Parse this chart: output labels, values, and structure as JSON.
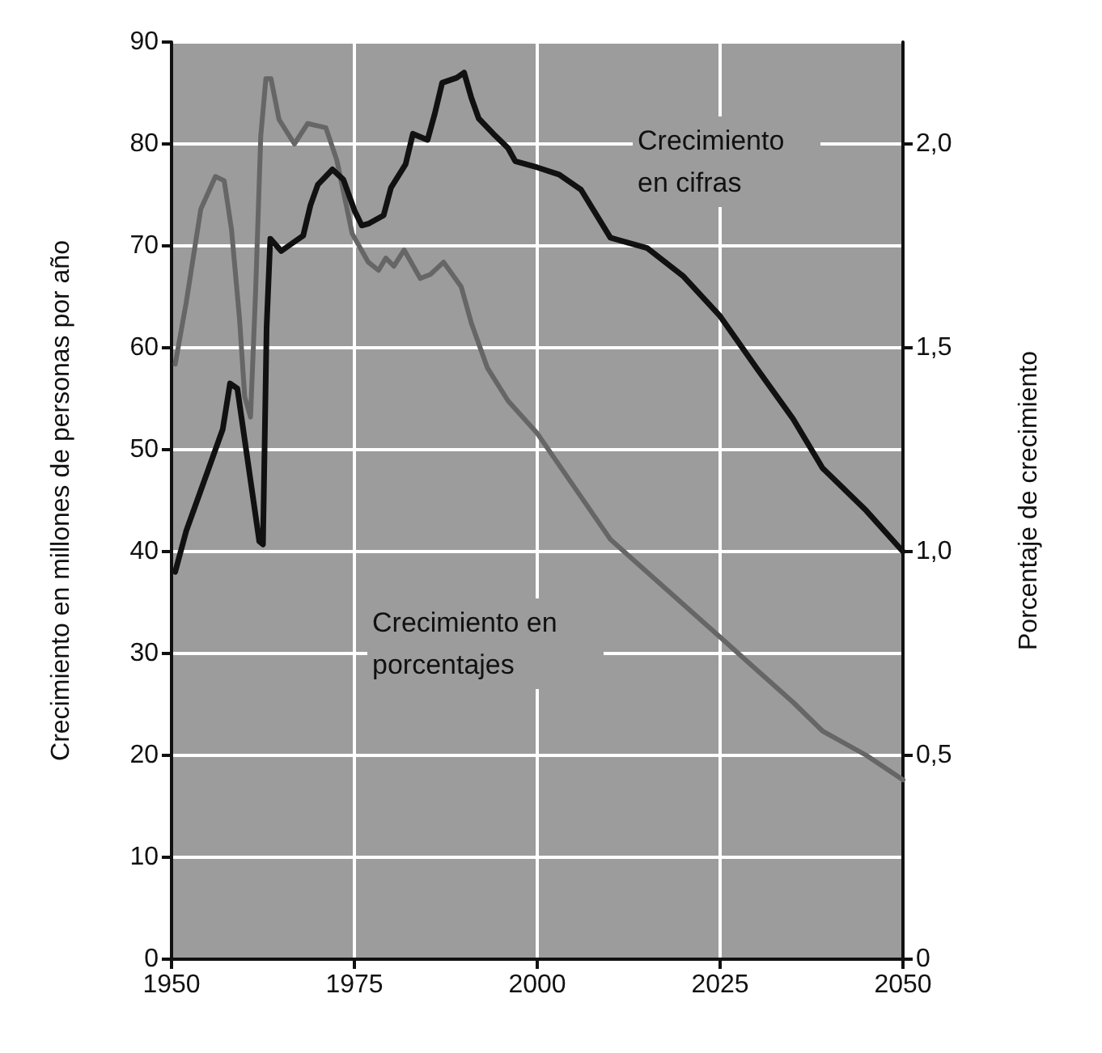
{
  "chart_data": {
    "type": "line",
    "xlabel": null,
    "ylabel": "Crecimiento en millones de personas por año",
    "y2label": "Porcentaje de crecimiento",
    "xlim": [
      1950,
      2050
    ],
    "xticks": [
      1950,
      1975,
      2000,
      2025,
      2050
    ],
    "ylim": [
      0,
      90
    ],
    "yticks": [
      0,
      10,
      20,
      30,
      40,
      50,
      60,
      70,
      80,
      90
    ],
    "y2lim": [
      0,
      2.25
    ],
    "y2ticks": [
      {
        "value": 0,
        "label": "0"
      },
      {
        "value": 0.5,
        "label": "0,5"
      },
      {
        "value": 1,
        "label": "1,0"
      },
      {
        "value": 1.5,
        "label": "1,5"
      },
      {
        "value": 2,
        "label": "2,0"
      }
    ],
    "grid": true,
    "marker": "none",
    "line_style": "solid",
    "annotations": [
      "Crecimiento en cifras",
      "Crecimiento en porcentajes"
    ],
    "series": [
      {
        "color": "#111111",
        "x": [
          1950.5,
          1952,
          1955,
          1957,
          1958,
          1959,
          1960,
          1961,
          1962,
          1962.5,
          1963,
          1963.5,
          1965,
          1966,
          1968,
          1969,
          1970,
          1972,
          1973.5,
          1975,
          1976,
          1977,
          1979,
          1980,
          1982,
          1983,
          1985,
          1986,
          1987,
          1989,
          1990,
          1991,
          1992,
          1994,
          1996,
          1997,
          2000,
          2003,
          2006,
          2010,
          2015,
          2020,
          2025,
          2030,
          2035,
          2039,
          2045,
          2050
        ],
        "values": [
          38,
          42,
          48,
          52,
          56.5,
          56,
          51,
          46,
          41,
          40.7,
          62,
          70.7,
          69.5,
          70,
          71,
          74,
          76,
          77.5,
          76.5,
          73.5,
          72,
          72.2,
          73,
          75.7,
          78,
          81,
          80.4,
          83,
          86,
          86.5,
          87,
          84.5,
          82.5,
          81,
          79.6,
          78.3,
          77.7,
          77,
          75.5,
          70.8,
          69.8,
          67,
          63.1,
          58,
          53,
          48.2,
          44,
          40
        ]
      },
      {
        "color": "#666666",
        "axis": "y2",
        "x": [
          1950.5,
          1952,
          1954,
          1956,
          1957.2,
          1958.2,
          1959.3,
          1960,
          1960.8,
          1961.5,
          1962.2,
          1962.9,
          1963.6,
          1964.7,
          1966.8,
          1968.6,
          1971.1,
          1972.6,
          1974.7,
          1976.9,
          1978.3,
          1979.3,
          1980.4,
          1981.8,
          1984,
          1985.4,
          1987.2,
          1989.6,
          1991,
          1993.2,
          1996,
          2000,
          2005,
          2010,
          2015,
          2020,
          2025,
          2030,
          2035,
          2039,
          2045,
          2050
        ],
        "values": [
          1.46,
          1.61,
          1.84,
          1.92,
          1.91,
          1.79,
          1.57,
          1.38,
          1.33,
          1.64,
          2.02,
          2.16,
          2.16,
          2.06,
          2,
          2.05,
          2.04,
          1.96,
          1.78,
          1.71,
          1.69,
          1.72,
          1.7,
          1.74,
          1.67,
          1.68,
          1.71,
          1.65,
          1.56,
          1.45,
          1.37,
          1.29,
          1.16,
          1.03,
          0.95,
          0.87,
          0.79,
          0.71,
          0.63,
          0.56,
          0.5,
          0.44
        ]
      }
    ]
  }
}
